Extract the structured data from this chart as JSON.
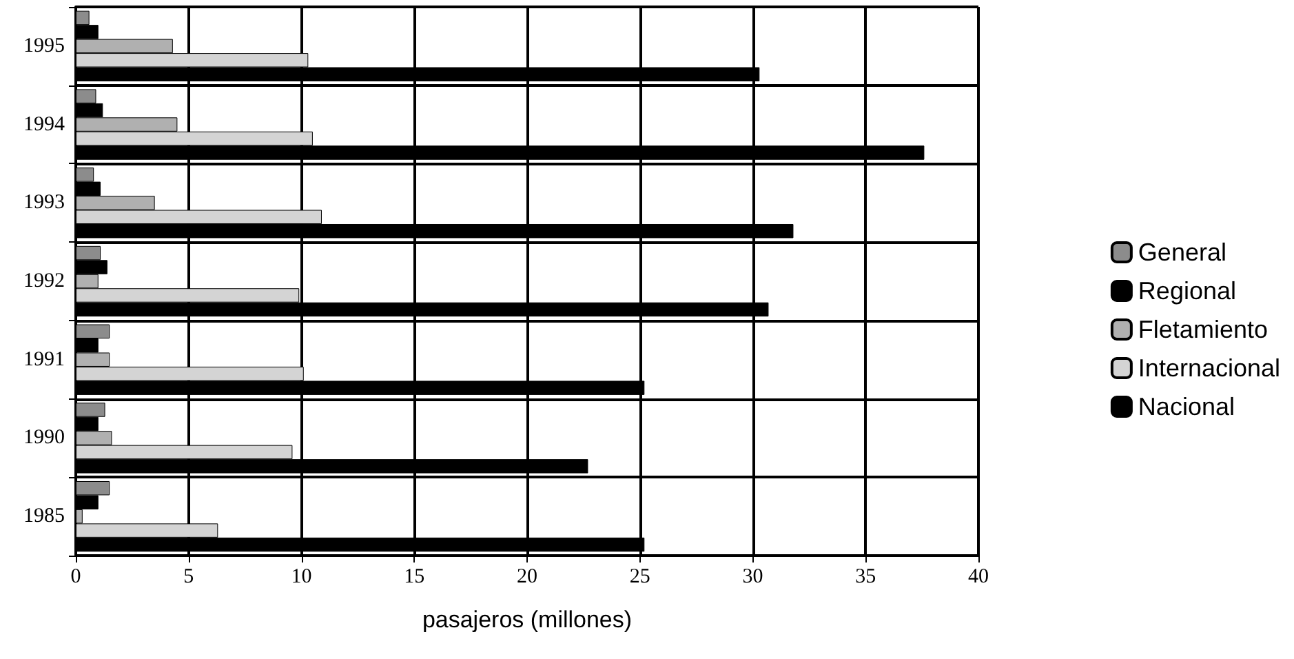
{
  "chart_data": {
    "type": "bar",
    "orientation": "horizontal",
    "xlabel": "pasajeros (millones)",
    "categories": [
      "1995",
      "1994",
      "1993",
      "1992",
      "1991",
      "1990",
      "1985"
    ],
    "series": [
      {
        "name": "General",
        "color": "#8c8c8c",
        "values": [
          0.6,
          0.9,
          0.8,
          1.1,
          1.5,
          1.3,
          1.5
        ]
      },
      {
        "name": "Regional",
        "color": "#000000",
        "values": [
          1.0,
          1.2,
          1.1,
          1.4,
          1.0,
          1.0,
          1.0
        ]
      },
      {
        "name": "Fletamiento",
        "color": "#b0b0b0",
        "values": [
          4.3,
          4.5,
          3.5,
          1.0,
          1.5,
          1.6,
          0.3
        ]
      },
      {
        "name": "Internacional",
        "color": "#d4d4d4",
        "values": [
          10.3,
          10.5,
          10.9,
          9.9,
          10.1,
          9.6,
          6.3
        ]
      },
      {
        "name": "Nacional",
        "color": "#000000",
        "values": [
          30.3,
          37.6,
          31.8,
          30.7,
          25.2,
          22.7,
          25.2
        ]
      }
    ],
    "xlim": [
      0,
      40
    ],
    "xticks": [
      0,
      5,
      10,
      15,
      20,
      25,
      30,
      35,
      40
    ],
    "grid": true,
    "legend": "right"
  }
}
